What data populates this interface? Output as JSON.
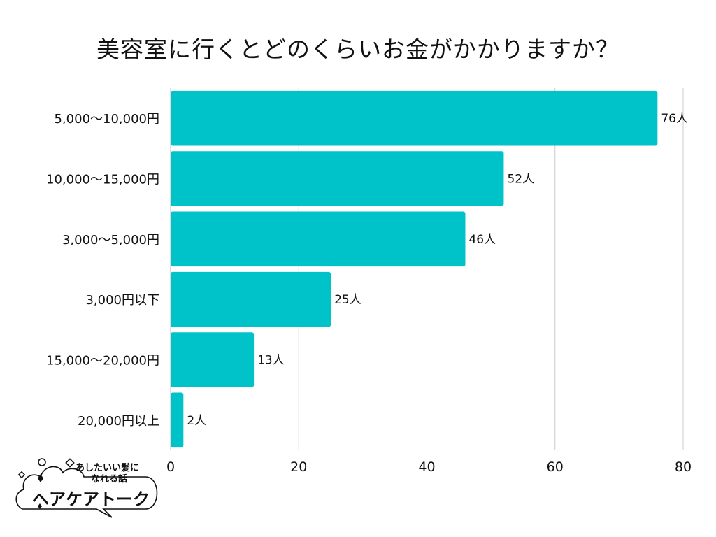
{
  "chart_data": {
    "type": "bar",
    "orientation": "horizontal",
    "title": "美容室に行くとどのくらいお金がかかりますか？",
    "categories": [
      "5,000〜10,000円",
      "10,000〜15,000円",
      "3,000〜5,000円",
      "3,000円以下",
      "15,000〜20,000円",
      "20,000円以上"
    ],
    "values": [
      76,
      52,
      46,
      25,
      13,
      2
    ],
    "data_labels": [
      "76人",
      "52人",
      "46人",
      "25人",
      "13人",
      "2人"
    ],
    "x_ticks": [
      "0",
      "20",
      "40",
      "60",
      "80"
    ],
    "xlim": [
      0,
      80
    ],
    "grid": true,
    "bar_color": "#00c2c9"
  },
  "logo": {
    "tagline_line1": "あしたいい髪に",
    "tagline_line2": "なれる話",
    "name": "ヘアケアトーク"
  }
}
